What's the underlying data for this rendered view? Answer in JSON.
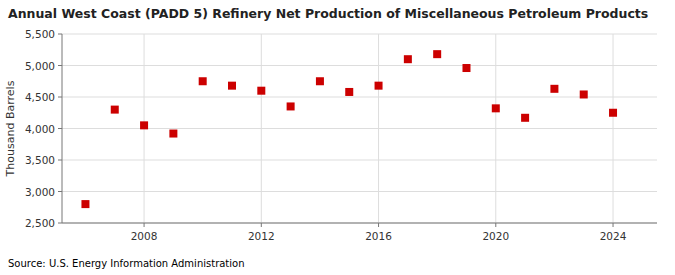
{
  "chart_data": {
    "type": "scatter",
    "title": "Annual West Coast (PADD 5) Refinery Net Production of Miscellaneous Petroleum Products",
    "y_label": "Thousand Barrels",
    "annotations": [
      "Source: U.S. Energy Information Administration"
    ],
    "x": [
      2006,
      2007,
      2008,
      2009,
      2010,
      2011,
      2012,
      2013,
      2014,
      2015,
      2016,
      2017,
      2018,
      2019,
      2020,
      2021,
      2022,
      2023,
      2024
    ],
    "values": [
      2800,
      4300,
      4050,
      3920,
      4750,
      4680,
      4600,
      4350,
      4750,
      4580,
      4680,
      5100,
      5180,
      4960,
      4320,
      4170,
      4630,
      4540,
      4250
    ],
    "color": "#cc0000",
    "marker": "square",
    "xlim": [
      2005.2,
      2025.5
    ],
    "ylim": [
      2500,
      5500
    ],
    "xticks": [
      2008,
      2012,
      2016,
      2020,
      2024
    ],
    "yticks": [
      {
        "value": 2500,
        "label": "2,500"
      },
      {
        "value": 3000,
        "label": "3,000"
      },
      {
        "value": 3500,
        "label": "3,500"
      },
      {
        "value": 4000,
        "label": "4,000"
      },
      {
        "value": 4500,
        "label": "4,500"
      },
      {
        "value": 5000,
        "label": "5,000"
      },
      {
        "value": 5500,
        "label": "5,500"
      }
    ],
    "grid": true
  }
}
